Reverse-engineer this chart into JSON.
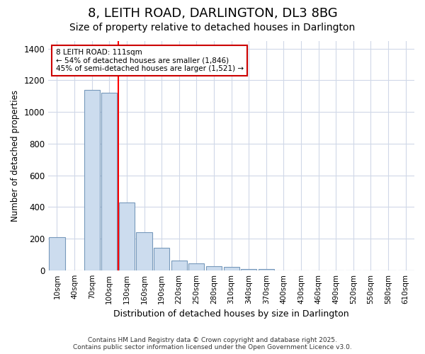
{
  "title": "8, LEITH ROAD, DARLINGTON, DL3 8BG",
  "subtitle": "Size of property relative to detached houses in Darlington",
  "xlabel": "Distribution of detached houses by size in Darlington",
  "ylabel": "Number of detached properties",
  "categories": [
    "10sqm",
    "40sqm",
    "70sqm",
    "100sqm",
    "130sqm",
    "160sqm",
    "190sqm",
    "220sqm",
    "250sqm",
    "280sqm",
    "310sqm",
    "340sqm",
    "370sqm",
    "400sqm",
    "430sqm",
    "460sqm",
    "490sqm",
    "520sqm",
    "550sqm",
    "580sqm",
    "610sqm"
  ],
  "values": [
    210,
    0,
    1140,
    1120,
    430,
    240,
    140,
    60,
    45,
    25,
    20,
    10,
    10,
    0,
    0,
    0,
    0,
    0,
    0,
    0,
    0
  ],
  "bar_color": "#ccdcee",
  "bar_edge_color": "#7799bb",
  "red_line_x": 3.5,
  "annotation_text": "8 LEITH ROAD: 111sqm\n← 54% of detached houses are smaller (1,846)\n45% of semi-detached houses are larger (1,521) →",
  "annotation_box_color": "#ffffff",
  "annotation_box_edge": "#cc0000",
  "ylim": [
    0,
    1450
  ],
  "yticks": [
    0,
    200,
    400,
    600,
    800,
    1000,
    1200,
    1400
  ],
  "footer1": "Contains HM Land Registry data © Crown copyright and database right 2025.",
  "footer2": "Contains public sector information licensed under the Open Government Licence v3.0.",
  "background_color": "#ffffff",
  "grid_color": "#d0d8e8",
  "title_fontsize": 13,
  "subtitle_fontsize": 10
}
